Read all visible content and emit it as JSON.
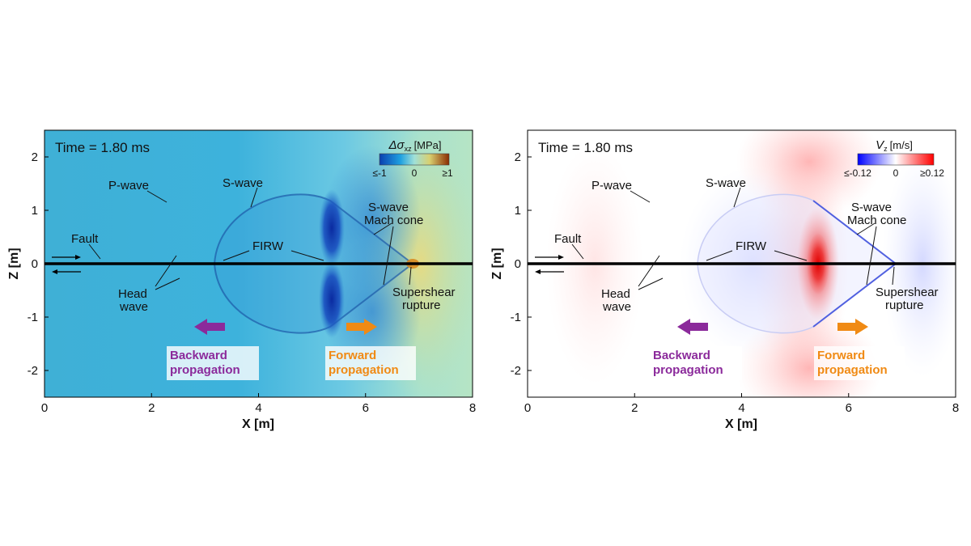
{
  "colors": {
    "purple": "#8b2a9b",
    "orange": "#f08a14",
    "fault": "#000000"
  },
  "chart_data": [
    {
      "type": "heatmap",
      "id": "stress",
      "time_text": "Time = 1.80 ms",
      "xlabel": "X [m]",
      "ylabel": "Z [m]",
      "xlim": [
        0,
        8
      ],
      "ylim": [
        -2.5,
        2.5
      ],
      "x_ticks": [
        "0",
        "2",
        "4",
        "6",
        "8"
      ],
      "y_ticks": [
        "-2",
        "-1",
        "0",
        "1",
        "2"
      ],
      "colorbar": {
        "symbol": "Δσ",
        "subscript": "xz",
        "unit": "[MPa]",
        "tick_labels": [
          "≤-1",
          "0",
          "≥1"
        ],
        "colormap": [
          "#0a3fb0",
          "#1ea0e0",
          "#9fe0d8",
          "#d8d070",
          "#8b2c00"
        ]
      },
      "annotations": [
        {
          "key": "pwave",
          "text": "P-wave"
        },
        {
          "key": "swave",
          "text": "S-wave"
        },
        {
          "key": "fault",
          "text": "Fault"
        },
        {
          "key": "firw",
          "text": "FIRW"
        },
        {
          "key": "mach1",
          "text": "S-wave"
        },
        {
          "key": "mach2",
          "text": "Mach cone"
        },
        {
          "key": "head1",
          "text": "Head"
        },
        {
          "key": "head2",
          "text": "wave"
        },
        {
          "key": "super1",
          "text": "Supershear"
        },
        {
          "key": "super2",
          "text": "rupture"
        }
      ],
      "backward": [
        "Backward",
        "propagation"
      ],
      "forward": [
        "Forward",
        "propagation"
      ]
    },
    {
      "type": "heatmap",
      "id": "velocity",
      "time_text": "Time = 1.80 ms",
      "xlabel": "X [m]",
      "ylabel": "Z [m]",
      "xlim": [
        0,
        8
      ],
      "ylim": [
        -2.5,
        2.5
      ],
      "x_ticks": [
        "0",
        "2",
        "4",
        "6",
        "8"
      ],
      "y_ticks": [
        "-2",
        "-1",
        "0",
        "1",
        "2"
      ],
      "colorbar": {
        "symbol": "V",
        "subscript": "z",
        "unit": "[m/s]",
        "tick_labels": [
          "≤-0.12",
          "0",
          "≥0.12"
        ],
        "colormap": [
          "#0000ff",
          "#ffffff",
          "#ff0000"
        ]
      },
      "annotations": [
        {
          "key": "pwave",
          "text": "P-wave"
        },
        {
          "key": "swave",
          "text": "S-wave"
        },
        {
          "key": "fault",
          "text": "Fault"
        },
        {
          "key": "firw",
          "text": "FIRW"
        },
        {
          "key": "mach1",
          "text": "S-wave"
        },
        {
          "key": "mach2",
          "text": "Mach cone"
        },
        {
          "key": "head1",
          "text": "Head"
        },
        {
          "key": "head2",
          "text": "wave"
        },
        {
          "key": "super1",
          "text": "Supershear"
        },
        {
          "key": "super2",
          "text": "rupture"
        }
      ],
      "backward": [
        "Backward",
        "propagation"
      ],
      "forward": [
        "Forward",
        "propagation"
      ]
    }
  ]
}
